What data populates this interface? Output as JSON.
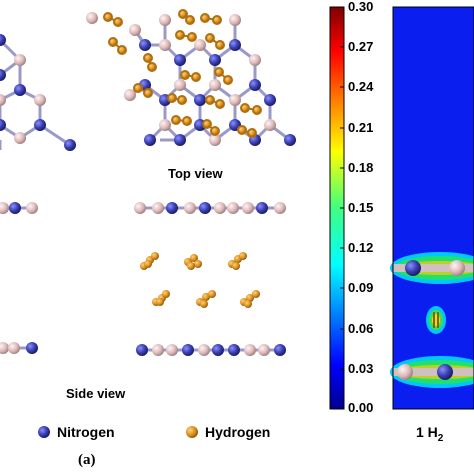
{
  "labels": {
    "top_view": "Top view",
    "side_view": "Side view",
    "panel": "(a)",
    "density_main": "1 H",
    "density_sub": "2"
  },
  "legend": {
    "nitrogen": "Nitrogen",
    "hydrogen": "Hydrogen"
  },
  "colorbar": {
    "ticks": [
      "0.30",
      "0.27",
      "0.24",
      "0.21",
      "0.18",
      "0.15",
      "0.12",
      "0.09",
      "0.06",
      "0.03",
      "0.00"
    ],
    "min": 0.0,
    "max": 0.3
  },
  "colors": {
    "nitrogen": "#3a3fb0",
    "boron": "#dcb8b8",
    "hydrogen": "#d98e1c",
    "density_background": "#0a1ef0"
  }
}
